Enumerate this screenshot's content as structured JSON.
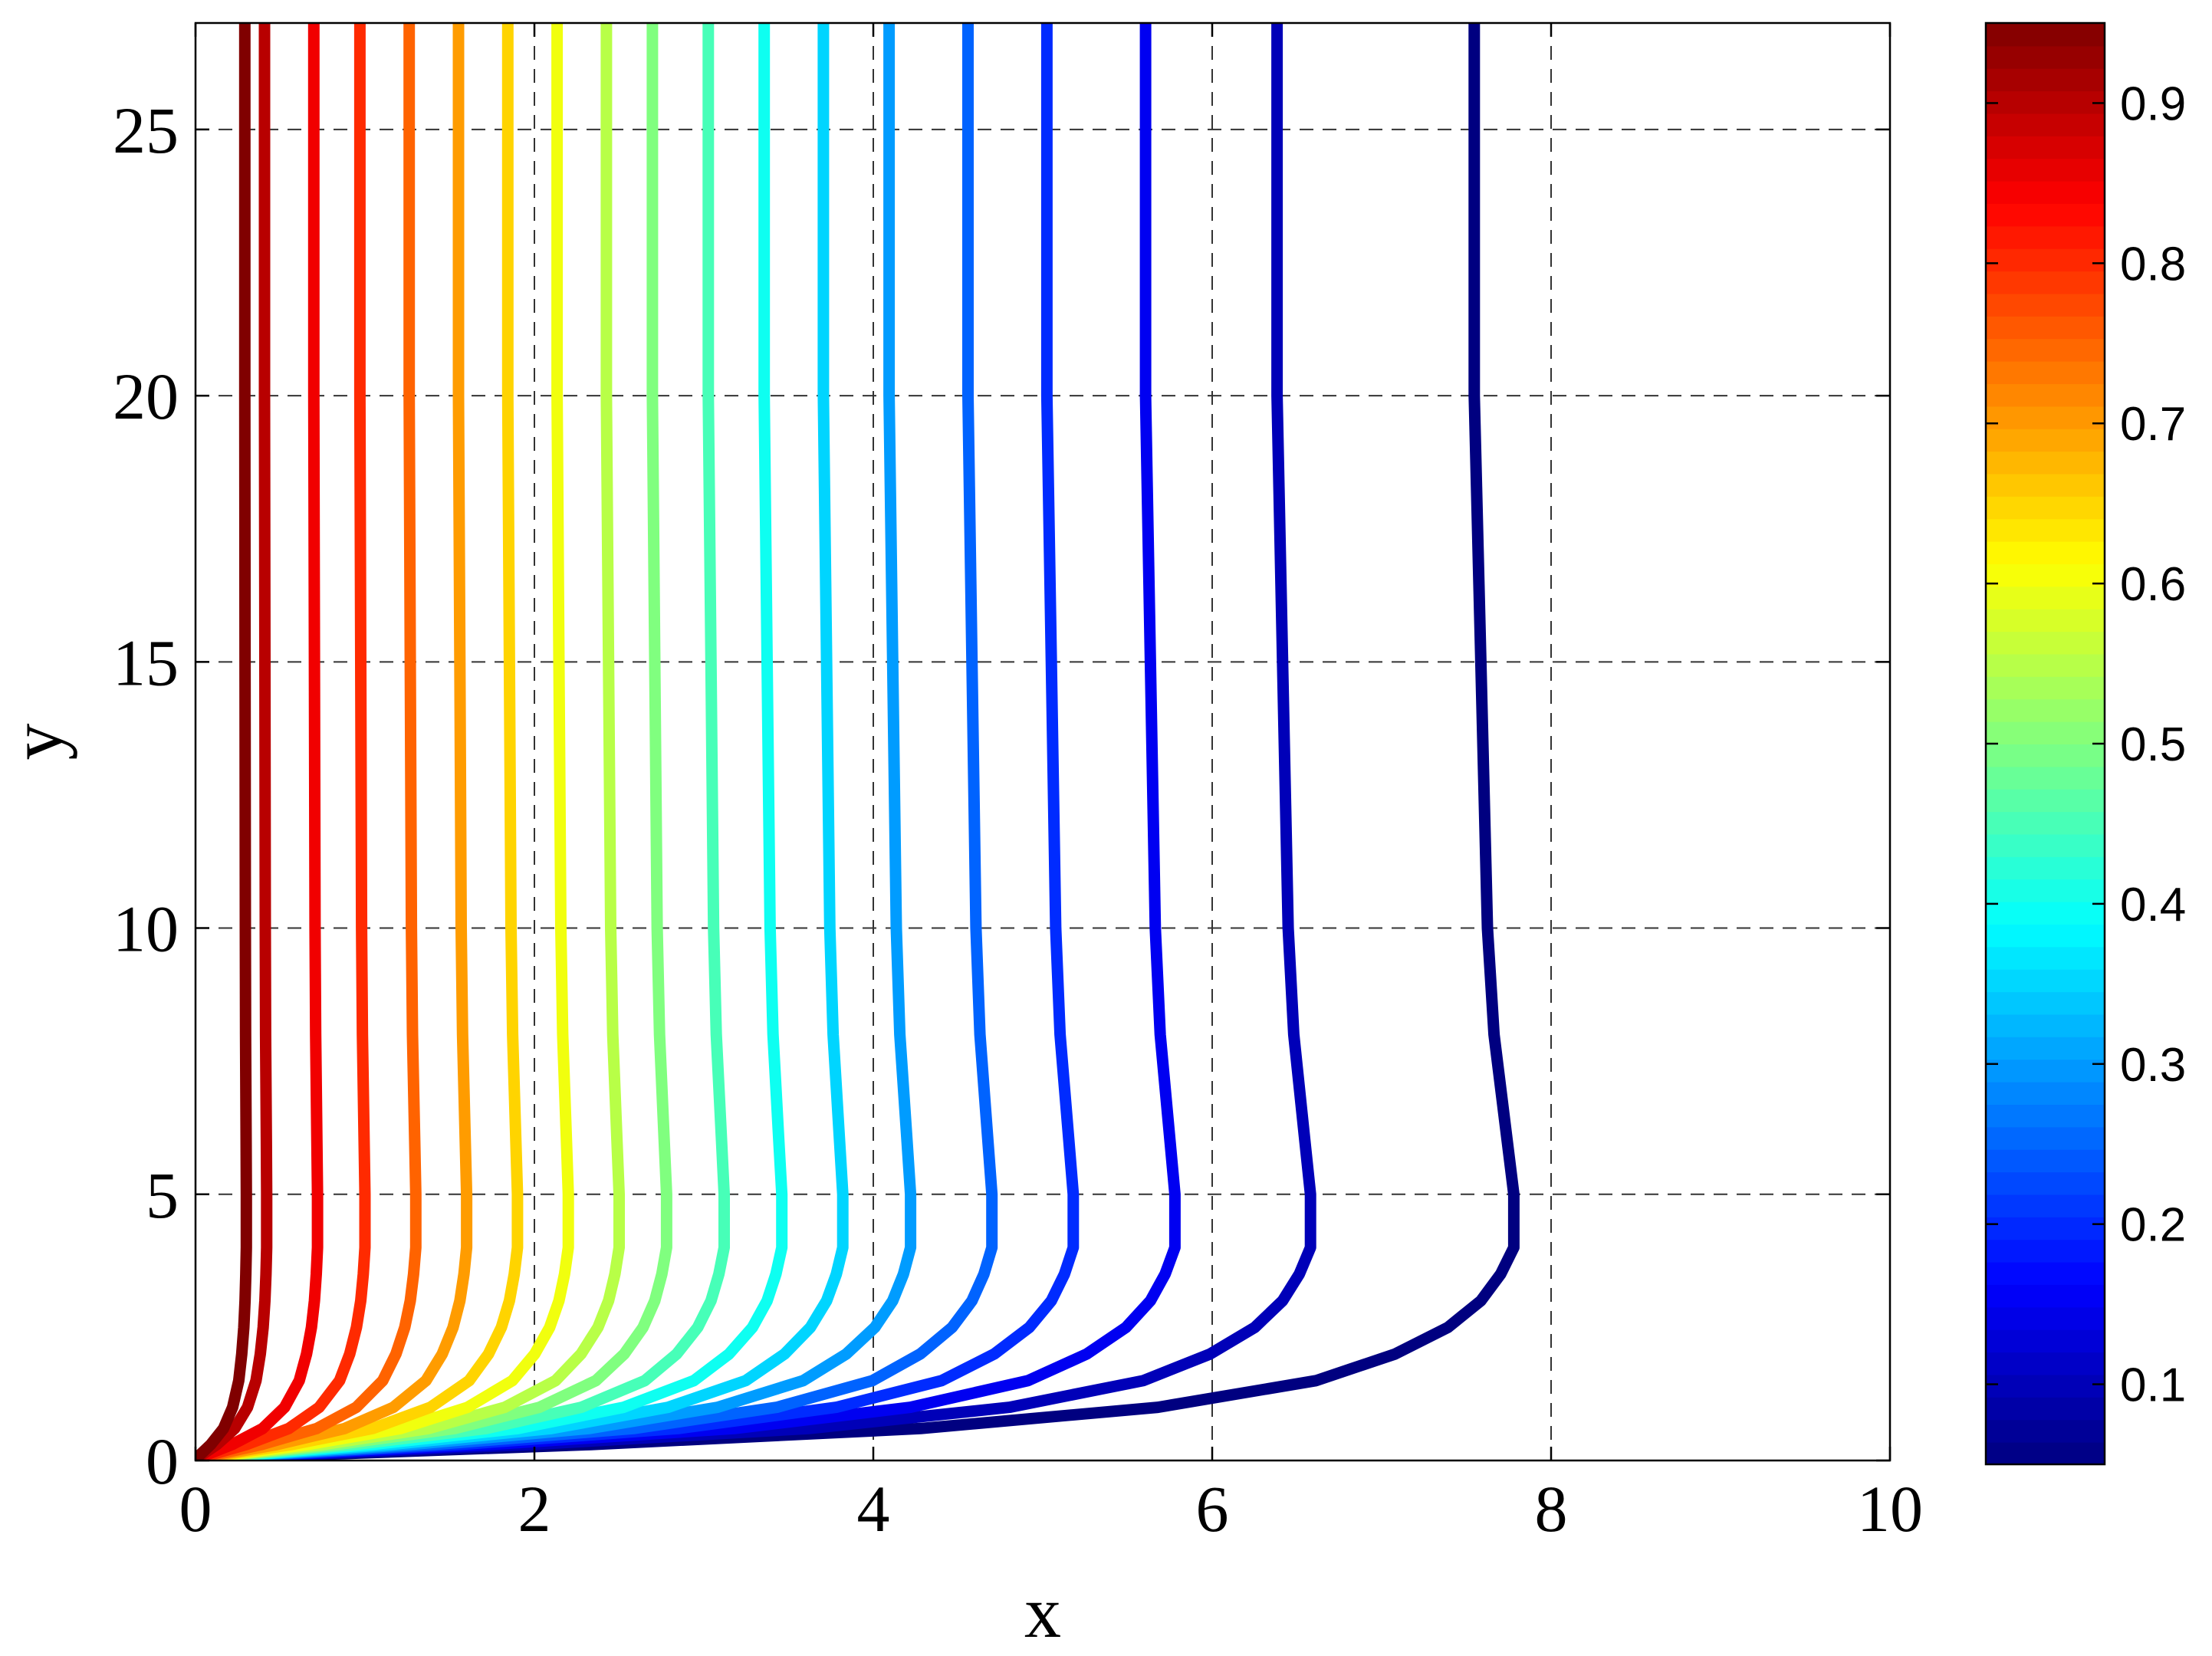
{
  "chart_data": {
    "type": "line",
    "title": "",
    "xlabel": "x",
    "ylabel": "y",
    "xlim": [
      0,
      10
    ],
    "ylim": [
      0,
      27
    ],
    "xticks": [
      "0",
      "2",
      "4",
      "6",
      "8",
      "10"
    ],
    "yticks": [
      "0",
      "5",
      "10",
      "15",
      "20",
      "25"
    ],
    "grid": true,
    "colormap": "jet",
    "colorbar": {
      "range": [
        0.05,
        0.95
      ],
      "ticks": [
        "0.1",
        "0.2",
        "0.3",
        "0.4",
        "0.5",
        "0.6",
        "0.7",
        "0.8",
        "0.9"
      ]
    },
    "contour_levels": [
      0.05,
      0.1,
      0.15,
      0.2,
      0.25,
      0.3,
      0.35,
      0.4,
      0.45,
      0.5,
      0.55,
      0.6,
      0.65,
      0.7,
      0.75,
      0.8,
      0.85,
      0.9,
      0.95
    ],
    "contour_final_x": [
      7.78,
      6.58,
      5.78,
      5.18,
      4.7,
      4.22,
      3.82,
      3.46,
      3.12,
      2.78,
      2.5,
      2.2,
      1.9,
      1.6,
      1.3,
      1.0,
      0.72,
      0.42,
      0.3
    ],
    "curve_shape": {
      "y": [
        0,
        0.1,
        0.3,
        0.6,
        1.0,
        1.5,
        2.0,
        2.5,
        3.0,
        3.5,
        4.0,
        5.0,
        6.0,
        8.0,
        10.0,
        15.0,
        20.0,
        27.0
      ],
      "fraction_of_final_x": [
        0.0,
        0.08,
        0.3,
        0.55,
        0.73,
        0.85,
        0.91,
        0.95,
        0.975,
        0.99,
        1.0,
        1.0,
        0.995,
        0.985,
        0.98,
        0.975,
        0.97,
        0.97
      ]
    }
  }
}
